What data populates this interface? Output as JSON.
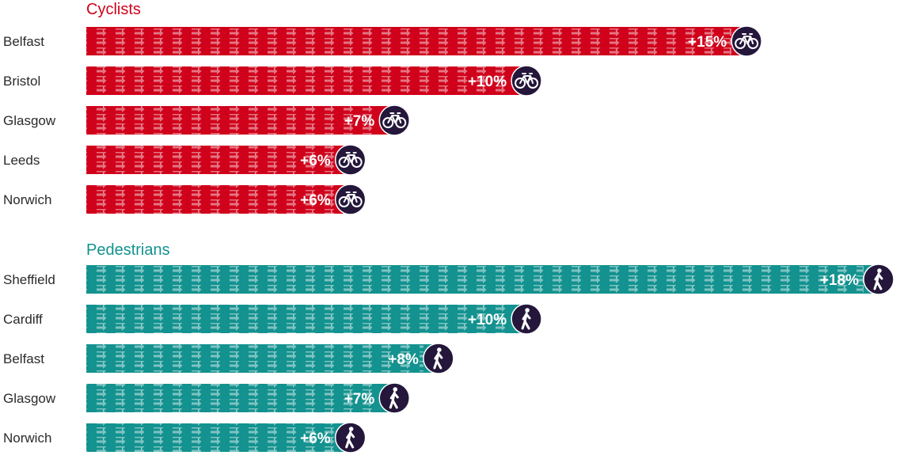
{
  "chart_data": {
    "type": "bar",
    "orientation": "horizontal",
    "value_scale_max": 18,
    "colors": {
      "Cyclists": "#d0021b",
      "Pedestrians": "#13928f",
      "icon_bg": "#24173b",
      "icon_fg": "#ffffff"
    },
    "groups": [
      {
        "name": "Cyclists",
        "icon": "bicycle-icon",
        "bars": [
          {
            "city": "Belfast",
            "value": 15,
            "label": "+15%"
          },
          {
            "city": "Bristol",
            "value": 10,
            "label": "+10%"
          },
          {
            "city": "Glasgow",
            "value": 7,
            "label": "+7%"
          },
          {
            "city": "Leeds",
            "value": 6,
            "label": "+6%"
          },
          {
            "city": "Norwich",
            "value": 6,
            "label": "+6%"
          }
        ]
      },
      {
        "name": "Pedestrians",
        "icon": "pedestrian-icon",
        "bars": [
          {
            "city": "Sheffield",
            "value": 18,
            "label": "+18%"
          },
          {
            "city": "Cardiff",
            "value": 10,
            "label": "+10%"
          },
          {
            "city": "Belfast",
            "value": 8,
            "label": "+8%"
          },
          {
            "city": "Glasgow",
            "value": 7,
            "label": "+7%"
          },
          {
            "city": "Norwich",
            "value": 6,
            "label": "+6%"
          }
        ]
      }
    ]
  }
}
